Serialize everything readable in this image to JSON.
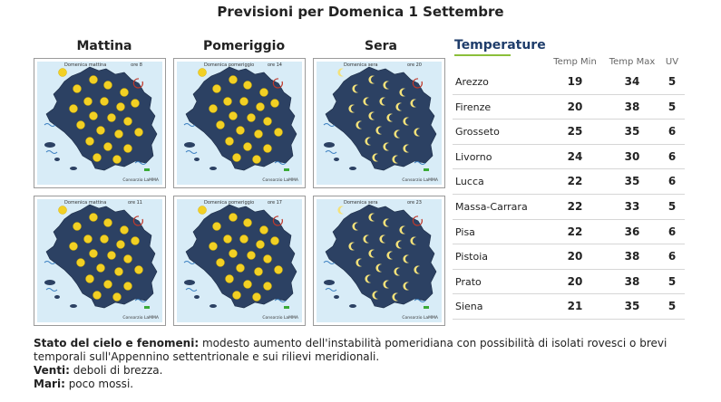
{
  "page": {
    "title": "Previsioni per Domenica 1 Settembre"
  },
  "columns": [
    "Mattina",
    "Pomeriggio",
    "Sera"
  ],
  "maps": [
    {
      "period": "Domenica mattina",
      "hour": "ore 8",
      "type": "sun",
      "credit": "Consorzio LaMMA"
    },
    {
      "period": "Domenica pomeriggio",
      "hour": "ore 14",
      "type": "sun",
      "credit": "Consorzio LaMMA"
    },
    {
      "period": "Domenica sera",
      "hour": "ore 20",
      "type": "moon",
      "credit": "Consorzio LaMMA"
    },
    {
      "period": "Domenica mattina",
      "hour": "ore 11",
      "type": "sun",
      "credit": "Consorzio LaMMA"
    },
    {
      "period": "Domenica pomeriggio",
      "hour": "ore 17",
      "type": "sun",
      "credit": "Consorzio LaMMA"
    },
    {
      "period": "Domenica sera",
      "hour": "ore 23",
      "type": "moon",
      "credit": "Consorzio LaMMA"
    }
  ],
  "temperature": {
    "title": "Temperature",
    "headers": {
      "min": "Temp Min",
      "max": "Temp Max",
      "uv": "UV"
    },
    "rows": [
      {
        "city": "Arezzo",
        "min": "19",
        "max": "34",
        "uv": "5"
      },
      {
        "city": "Firenze",
        "min": "20",
        "max": "38",
        "uv": "5"
      },
      {
        "city": "Grosseto",
        "min": "25",
        "max": "35",
        "uv": "6"
      },
      {
        "city": "Livorno",
        "min": "24",
        "max": "30",
        "uv": "6"
      },
      {
        "city": "Lucca",
        "min": "22",
        "max": "35",
        "uv": "6"
      },
      {
        "city": "Massa-Carrara",
        "min": "22",
        "max": "33",
        "uv": "5"
      },
      {
        "city": "Pisa",
        "min": "22",
        "max": "36",
        "uv": "6"
      },
      {
        "city": "Pistoia",
        "min": "20",
        "max": "38",
        "uv": "6"
      },
      {
        "city": "Prato",
        "min": "20",
        "max": "38",
        "uv": "5"
      },
      {
        "city": "Siena",
        "min": "21",
        "max": "35",
        "uv": "5"
      }
    ]
  },
  "description": {
    "sky_label": "Stato del cielo e fenomeni:",
    "sky_text": " modesto aumento dell'instabilità pomeridiana con possibilità di isolati rovesci o brevi temporali sull'Appennino settentrionale e sui rilievi meridionali.",
    "wind_label": "Venti:",
    "wind_text": " deboli di brezza.",
    "sea_label": "Mari:",
    "sea_text": " poco mossi."
  },
  "colors": {
    "land": "#2c4163",
    "sea": "#d8ecf7",
    "sun": "#f2d024",
    "moon": "#f4e27a",
    "accent": "#8bbf3a",
    "title_blue": "#1f3d6b"
  }
}
